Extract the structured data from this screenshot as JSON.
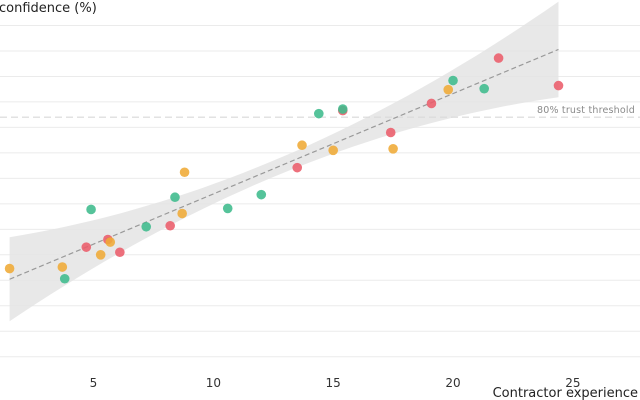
{
  "chart_data": {
    "type": "scatter",
    "xlabel": "Contractor experience",
    "ylabel": "confidence (%)",
    "xlim": [
      1.1,
      27.8
    ],
    "ylim": [
      2,
      75
    ],
    "x_ticks": [
      5,
      10,
      15,
      20,
      25
    ],
    "y_gridlines": [
      5,
      10,
      15,
      20,
      25,
      30,
      35,
      40,
      45,
      50,
      55,
      60,
      65,
      70
    ],
    "grid": true,
    "threshold": {
      "value": 52,
      "label": "80% trust threshold",
      "color": "#d9d9d9"
    },
    "trend": {
      "x_start": 1.5,
      "x_end": 24.4,
      "y_start": 20.2,
      "y_end": 65.3,
      "color": "#999999",
      "band_color": "#e4e4e4"
    },
    "colors": {
      "green": "#3dbb8c",
      "orange": "#efaa35",
      "red": "#ea5c6a"
    },
    "points": [
      {
        "x": 1.5,
        "y": 22.3,
        "color": "orange"
      },
      {
        "x": 3.7,
        "y": 22.6,
        "color": "orange"
      },
      {
        "x": 3.8,
        "y": 20.3,
        "color": "green"
      },
      {
        "x": 4.7,
        "y": 26.5,
        "color": "red"
      },
      {
        "x": 4.9,
        "y": 33.9,
        "color": "green"
      },
      {
        "x": 5.3,
        "y": 25.0,
        "color": "orange"
      },
      {
        "x": 5.6,
        "y": 28.0,
        "color": "red"
      },
      {
        "x": 5.7,
        "y": 27.5,
        "color": "orange"
      },
      {
        "x": 6.1,
        "y": 25.5,
        "color": "red"
      },
      {
        "x": 7.2,
        "y": 30.5,
        "color": "green"
      },
      {
        "x": 8.2,
        "y": 30.7,
        "color": "red"
      },
      {
        "x": 8.4,
        "y": 36.3,
        "color": "green"
      },
      {
        "x": 8.7,
        "y": 33.1,
        "color": "orange"
      },
      {
        "x": 8.8,
        "y": 41.2,
        "color": "orange"
      },
      {
        "x": 10.6,
        "y": 34.1,
        "color": "green"
      },
      {
        "x": 12.0,
        "y": 36.8,
        "color": "green"
      },
      {
        "x": 13.5,
        "y": 42.1,
        "color": "red"
      },
      {
        "x": 13.7,
        "y": 46.5,
        "color": "orange"
      },
      {
        "x": 14.4,
        "y": 52.7,
        "color": "green"
      },
      {
        "x": 15.0,
        "y": 45.5,
        "color": "orange"
      },
      {
        "x": 15.4,
        "y": 53.3,
        "color": "red"
      },
      {
        "x": 15.4,
        "y": 53.6,
        "color": "green"
      },
      {
        "x": 17.4,
        "y": 49.0,
        "color": "red"
      },
      {
        "x": 17.5,
        "y": 45.8,
        "color": "orange"
      },
      {
        "x": 19.1,
        "y": 54.7,
        "color": "red"
      },
      {
        "x": 19.8,
        "y": 57.4,
        "color": "orange"
      },
      {
        "x": 20.0,
        "y": 59.2,
        "color": "green"
      },
      {
        "x": 21.3,
        "y": 57.6,
        "color": "green"
      },
      {
        "x": 21.9,
        "y": 63.6,
        "color": "red"
      },
      {
        "x": 24.4,
        "y": 58.2,
        "color": "red"
      }
    ]
  }
}
